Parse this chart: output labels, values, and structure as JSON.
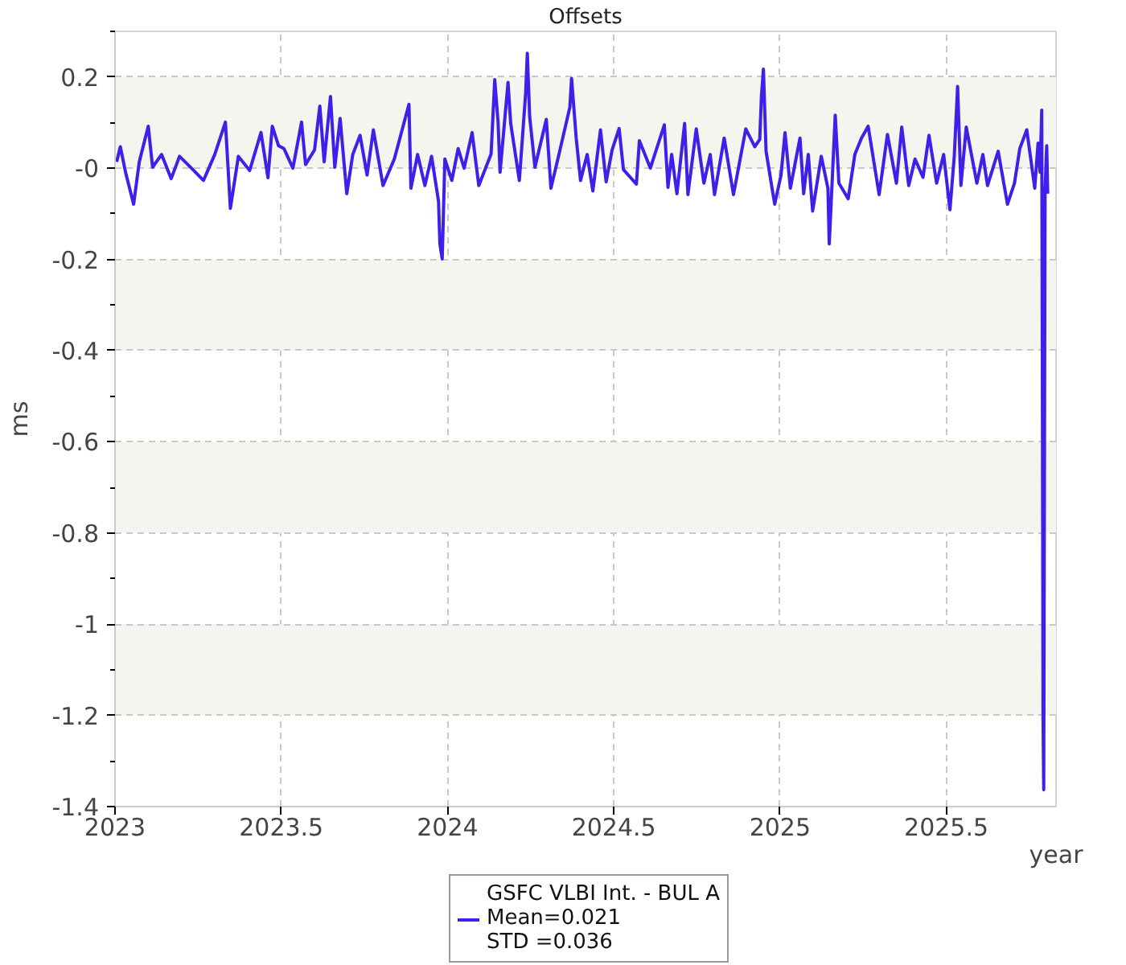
{
  "chart_data": {
    "type": "line",
    "title": "Offsets",
    "xlabel": "year",
    "ylabel": "ms",
    "x": [
      2023.005,
      2023.016,
      2023.032,
      2023.056,
      2023.073,
      2023.1,
      2023.113,
      2023.14,
      2023.169,
      2023.194,
      2023.23,
      2023.266,
      2023.3,
      2023.332,
      2023.347,
      2023.371,
      2023.405,
      2023.439,
      2023.46,
      2023.473,
      2023.492,
      2023.508,
      2023.535,
      2023.561,
      2023.573,
      2023.6,
      2023.616,
      2023.629,
      2023.648,
      2023.661,
      2023.677,
      2023.697,
      2023.715,
      2023.737,
      2023.758,
      2023.777,
      2023.806,
      2023.84,
      2023.884,
      2023.89,
      2023.91,
      2023.932,
      2023.952,
      2023.973,
      2023.977,
      2023.984,
      2023.992,
      2024.013,
      2024.032,
      2024.05,
      2024.074,
      2024.094,
      2024.131,
      2024.142,
      2024.152,
      2024.158,
      2024.182,
      2024.19,
      2024.216,
      2024.235,
      2024.24,
      2024.247,
      2024.263,
      2024.297,
      2024.311,
      2024.335,
      2024.368,
      2024.373,
      2024.387,
      2024.4,
      2024.42,
      2024.437,
      2024.46,
      2024.477,
      2024.495,
      2024.516,
      2024.529,
      2024.568,
      2024.577,
      2024.61,
      2024.652,
      2024.663,
      2024.674,
      2024.69,
      2024.713,
      2024.723,
      2024.748,
      2024.771,
      2024.79,
      2024.803,
      2024.832,
      2024.86,
      2024.88,
      2024.897,
      2024.924,
      2024.939,
      2024.944,
      2024.95,
      2024.958,
      2024.976,
      2024.984,
      2025.003,
      2025.015,
      2025.031,
      2025.06,
      2025.071,
      2025.085,
      2025.098,
      2025.124,
      2025.144,
      2025.148,
      2025.166,
      2025.177,
      2025.205,
      2025.225,
      2025.245,
      2025.265,
      2025.298,
      2025.323,
      2025.35,
      2025.366,
      2025.387,
      2025.406,
      2025.43,
      2025.448,
      2025.471,
      2025.492,
      2025.511,
      2025.524,
      2025.534,
      2025.544,
      2025.56,
      2025.592,
      2025.61,
      2025.624,
      2025.656,
      2025.684,
      2025.705,
      2025.721,
      2025.742,
      2025.766,
      2025.776,
      2025.782,
      2025.787,
      2025.789,
      2025.791,
      2025.793,
      2025.797,
      2025.802,
      2025.805
    ],
    "series": [
      {
        "name": "GSFC VLBI Int. - BUL A",
        "color": "#4020e8",
        "values": [
          0.014,
          0.047,
          -0.01,
          -0.079,
          0.014,
          0.092,
          0.002,
          0.03,
          -0.023,
          0.026,
          0.0,
          -0.027,
          0.03,
          0.101,
          -0.088,
          0.026,
          -0.005,
          0.078,
          -0.021,
          0.092,
          0.049,
          0.043,
          0.0,
          0.101,
          0.008,
          0.04,
          0.136,
          0.014,
          0.157,
          0.002,
          0.109,
          -0.056,
          0.03,
          0.072,
          -0.015,
          0.084,
          -0.038,
          0.02,
          0.14,
          -0.044,
          0.03,
          -0.038,
          0.026,
          -0.073,
          -0.166,
          -0.199,
          0.02,
          -0.027,
          0.043,
          0.0,
          0.078,
          -0.038,
          0.031,
          0.194,
          0.101,
          -0.009,
          0.188,
          0.098,
          -0.027,
          0.165,
          0.252,
          0.113,
          0.002,
          0.107,
          -0.044,
          0.03,
          0.134,
          0.197,
          0.066,
          -0.027,
          0.03,
          -0.05,
          0.084,
          -0.03,
          0.04,
          0.087,
          -0.003,
          -0.035,
          0.06,
          0.0,
          0.095,
          -0.042,
          0.03,
          -0.056,
          0.098,
          -0.058,
          0.086,
          -0.033,
          0.03,
          -0.058,
          0.066,
          -0.058,
          0.02,
          0.086,
          0.047,
          0.063,
          0.157,
          0.217,
          0.037,
          -0.044,
          -0.079,
          -0.015,
          0.078,
          -0.044,
          0.066,
          -0.056,
          0.03,
          -0.094,
          0.026,
          -0.044,
          -0.166,
          0.116,
          -0.033,
          -0.067,
          0.03,
          0.066,
          0.092,
          -0.058,
          0.074,
          -0.033,
          0.09,
          -0.038,
          0.02,
          -0.02,
          0.072,
          -0.033,
          0.03,
          -0.091,
          0.026,
          0.179,
          -0.038,
          0.09,
          -0.033,
          0.03,
          -0.038,
          0.037,
          -0.079,
          -0.033,
          0.043,
          0.084,
          -0.044,
          0.055,
          -0.009,
          0.127,
          -0.464,
          -1.21,
          -1.363,
          -0.05,
          0.049,
          -0.056
        ]
      }
    ],
    "annotations": [
      "Mean=0.021",
      "STD =0.036"
    ],
    "xlim": [
      2023,
      2025.83
    ],
    "ylim": [
      -1.4,
      0.3
    ],
    "xticks": [
      2023,
      2023.5,
      2024,
      2024.5,
      2025,
      2025.5
    ],
    "yticks": [
      -1.4,
      {
        "value": -1.3,
        "label": null
      },
      -1.2,
      {
        "value": -1.1,
        "label": null
      },
      -1,
      {
        "value": -0.9,
        "label": null
      },
      -0.8,
      {
        "value": -0.7,
        "label": null
      },
      -0.6,
      {
        "value": -0.5,
        "label": null
      },
      -0.4,
      {
        "value": -0.3,
        "label": null
      },
      -0.2,
      {
        "value": -0.1,
        "label": null
      },
      {
        "value": 0,
        "label": "-0"
      },
      {
        "value": 0.1,
        "label": null
      },
      0.2,
      {
        "value": 0.3,
        "label": null
      }
    ],
    "grid": true,
    "legend": "bottom",
    "marker": "none",
    "line_style": "solid"
  }
}
